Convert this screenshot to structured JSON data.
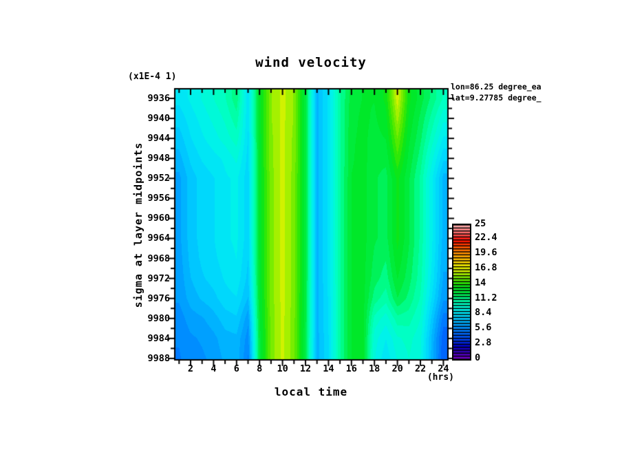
{
  "title": "wind velocity",
  "y_axis": {
    "unit_note": "(x1E-4 1)",
    "label": "sigma at layer midpoints",
    "ticks": [
      9936,
      9940,
      9944,
      9948,
      9952,
      9956,
      9960,
      9964,
      9968,
      9972,
      9976,
      9980,
      9984,
      9988
    ]
  },
  "x_axis": {
    "label": "local time",
    "unit_note": "(hrs)",
    "ticks": [
      2,
      4,
      6,
      8,
      10,
      12,
      14,
      16,
      18,
      20,
      22,
      24
    ]
  },
  "annotations": {
    "lon": "lon=86.25 degree_ea",
    "lat": "lat=9.27785 degree_"
  },
  "colorbar": {
    "min": 0,
    "max": 25,
    "levels": 45,
    "tick_labels": [
      "0",
      "2.8",
      "5.6",
      "8.4",
      "11.2",
      "14",
      "16.8",
      "19.6",
      "22.4",
      "25"
    ],
    "palette_stops": [
      [
        0.0,
        "#7a00c8"
      ],
      [
        1.2,
        "#3c00b4"
      ],
      [
        2.4,
        "#0000c8"
      ],
      [
        3.6,
        "#0040f0"
      ],
      [
        5.0,
        "#0070ff"
      ],
      [
        6.4,
        "#00a0ff"
      ],
      [
        7.8,
        "#00d2ff"
      ],
      [
        9.0,
        "#00f0f0"
      ],
      [
        10.2,
        "#00ffc8"
      ],
      [
        11.2,
        "#00ff96"
      ],
      [
        12.2,
        "#00ee44"
      ],
      [
        13.4,
        "#00e61e"
      ],
      [
        14.4,
        "#3ce800"
      ],
      [
        15.4,
        "#82ee00"
      ],
      [
        16.4,
        "#d2f200"
      ],
      [
        17.4,
        "#f0ee00"
      ],
      [
        18.4,
        "#ffc800"
      ],
      [
        19.6,
        "#ff9600"
      ],
      [
        21.0,
        "#ff5000"
      ],
      [
        22.2,
        "#ff0a00"
      ],
      [
        23.4,
        "#ff6464"
      ],
      [
        25.0,
        "#ffb4b4"
      ]
    ]
  },
  "chart_data": {
    "type": "heatmap",
    "title": "wind velocity",
    "xlabel": "local time",
    "ylabel": "sigma at layer midpoints",
    "x_unit": "hrs",
    "y_unit_note": "(x1E-4 1)",
    "zlim": [
      0,
      25
    ],
    "colorbar_ticks": [
      0,
      2.8,
      5.6,
      8.4,
      11.2,
      14,
      16.8,
      19.6,
      22.4,
      25
    ],
    "x": [
      1,
      2,
      3,
      4,
      5,
      6,
      7,
      8,
      9,
      10,
      11,
      12,
      13,
      14,
      15,
      16,
      17,
      18,
      19,
      20,
      21,
      22,
      23,
      24
    ],
    "y": [
      9936,
      9940,
      9944,
      9948,
      9952,
      9956,
      9960,
      9964,
      9968,
      9972,
      9976,
      9980,
      9984,
      9988
    ],
    "values": [
      [
        8.5,
        9,
        9.5,
        10,
        10.5,
        11.5,
        8.5,
        13,
        15.5,
        16.3,
        15.5,
        12.5,
        7,
        8.5,
        11,
        12.5,
        12.8,
        12.8,
        13.5,
        16.5,
        13.5,
        12.5,
        11.5,
        10.5
      ],
      [
        8,
        8.6,
        9.1,
        9.6,
        10.1,
        10.9,
        8.4,
        13,
        15.5,
        16.3,
        15.5,
        12.5,
        7,
        8.5,
        11,
        12.6,
        12.9,
        12.7,
        13.1,
        15.8,
        13.2,
        12.1,
        10.9,
        9.6
      ],
      [
        7.5,
        8.3,
        8.8,
        9.2,
        9.7,
        10.3,
        8.3,
        13,
        15.4,
        16.3,
        15.4,
        12.5,
        7,
        8.5,
        11,
        12.7,
        12.9,
        12.6,
        12.8,
        15,
        12.9,
        11.8,
        10.3,
        8.8
      ],
      [
        7,
        7.9,
        8.4,
        8.7,
        9,
        9.6,
        8.1,
        13,
        15.4,
        16.3,
        15.4,
        12.5,
        7,
        8.5,
        11,
        12.7,
        13,
        12.4,
        12.4,
        14.3,
        12.6,
        11.4,
        9.6,
        7.9
      ],
      [
        6.5,
        7.5,
        8,
        8.3,
        8.8,
        9,
        8,
        13,
        15.3,
        16.3,
        15.3,
        12.5,
        7,
        8.5,
        11,
        12.8,
        13,
        12.3,
        12,
        13.5,
        12.3,
        11,
        9,
        7
      ],
      [
        6.5,
        7.5,
        8,
        8.3,
        8.8,
        9,
        8,
        13,
        15.3,
        16.3,
        15.3,
        12.5,
        7,
        8.5,
        11,
        12.8,
        13,
        12.3,
        12,
        13.5,
        12.3,
        11,
        9,
        7
      ],
      [
        6.5,
        7.5,
        8,
        8.3,
        8.8,
        9,
        8,
        13,
        15.3,
        16.3,
        15.3,
        12.5,
        7,
        8.5,
        11,
        12.8,
        13,
        12.3,
        12,
        13.5,
        12.3,
        11,
        9,
        7
      ],
      [
        6.5,
        7.5,
        8,
        8.3,
        8.8,
        9,
        8,
        13,
        15.3,
        16.3,
        15.3,
        12.5,
        7,
        8.5,
        11,
        12.8,
        13,
        12.3,
        12,
        13.5,
        12.3,
        11,
        9,
        7
      ],
      [
        6.4,
        7.4,
        7.9,
        8.2,
        8.6,
        8.9,
        7.8,
        13,
        15.3,
        16.3,
        15.3,
        12.5,
        7,
        8.5,
        11,
        12.8,
        13,
        12.1,
        11.7,
        13.2,
        12.1,
        10.9,
        8.9,
        6.8
      ],
      [
        6.3,
        7.2,
        7.7,
        8,
        8.4,
        8.7,
        7.6,
        12.9,
        15.3,
        16.3,
        15.3,
        12.5,
        7,
        8.5,
        11,
        12.8,
        13,
        11.9,
        11.4,
        12.8,
        11.9,
        10.8,
        8.7,
        6.6
      ],
      [
        6.2,
        6.9,
        7.3,
        7.6,
        8.1,
        8.3,
        7.2,
        12.8,
        15.3,
        16.3,
        15.3,
        12.4,
        7,
        8.4,
        11,
        12.8,
        13,
        11.4,
        10.8,
        12.2,
        11.5,
        10.5,
        8.3,
        6.2
      ],
      [
        5.8,
        6.4,
        6.6,
        7,
        7.5,
        7.7,
        6.3,
        12.7,
        15.2,
        16.3,
        15.2,
        12.4,
        7,
        8.4,
        11,
        12.8,
        13,
        10.4,
        9.7,
        10.9,
        10.8,
        10,
        7.6,
        5.3
      ],
      [
        5.6,
        6,
        6.2,
        6.5,
        7,
        7.1,
        5.8,
        12.5,
        15.2,
        16.3,
        15.2,
        12.3,
        7,
        8.3,
        11,
        12.8,
        13,
        9.7,
        8.9,
        9.9,
        10.2,
        9.6,
        7.1,
        4.6
      ],
      [
        5.5,
        5.8,
        6,
        6.3,
        6.8,
        7,
        5.5,
        12.5,
        15.2,
        16.3,
        15.2,
        12.3,
        7,
        8.3,
        11,
        12.8,
        13,
        9.5,
        8.5,
        9.5,
        10,
        9.5,
        7,
        4.5
      ]
    ]
  }
}
